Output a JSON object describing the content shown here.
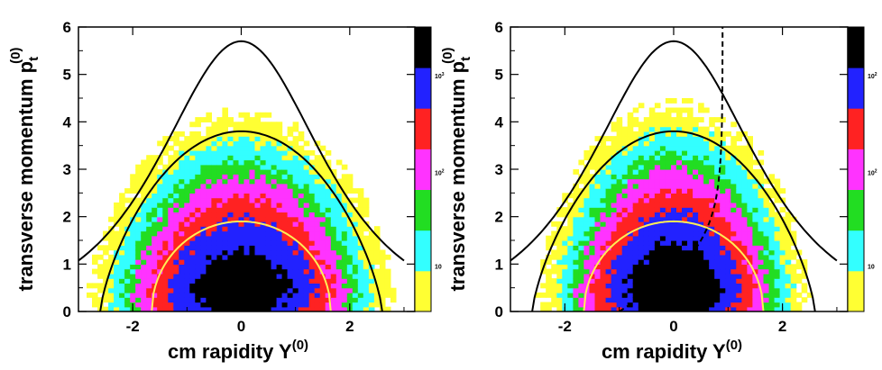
{
  "chart_data": [
    {
      "type": "heatmap",
      "xlabel": "cm rapidity Y",
      "xlabel_sup": "(0)",
      "ylabel": "transverse momentum p",
      "ylabel_sub": "t",
      "ylabel_sup": "(0)",
      "xlim": [
        -3.0,
        3.2
      ],
      "ylim": [
        0,
        6
      ],
      "xticks": [
        "-2",
        "0",
        "2"
      ],
      "yticks": [
        "0",
        "1",
        "2",
        "3",
        "4",
        "5",
        "6"
      ],
      "colorbar_labels": [
        "10",
        "10",
        "10"
      ],
      "colorbar_exponents": [
        "",
        "2",
        "3"
      ],
      "colors": [
        "#ffff33",
        "#33ffff",
        "#22dd22",
        "#ff33ff",
        "#ff2222",
        "#2222ff",
        "#000000"
      ],
      "ellipse": {
        "a": 2.8,
        "b": 4.8,
        "y0": 0.7
      },
      "dip": 0.3,
      "boundary_curves": [
        {
          "ymax": 5.7
        },
        {
          "ymax": 3.8
        }
      ],
      "yellow_curve": {
        "ymax": 1.9
      },
      "dashed_curve": false
    },
    {
      "type": "heatmap",
      "xlabel": "cm rapidity Y",
      "xlabel_sup": "(0)",
      "ylabel": "transverse momentum p",
      "ylabel_sub": "t",
      "ylabel_sup": "(0)",
      "xlim": [
        -3.0,
        3.2
      ],
      "ylim": [
        0,
        6
      ],
      "xticks": [
        "-2",
        "0",
        "2"
      ],
      "yticks": [
        "0",
        "1",
        "2",
        "3",
        "4",
        "5",
        "6"
      ],
      "colorbar_labels": [
        "10",
        "10",
        "10"
      ],
      "colorbar_exponents": [
        "",
        "2",
        "2"
      ],
      "colors": [
        "#ffff33",
        "#33ffff",
        "#22dd22",
        "#ff33ff",
        "#ff2222",
        "#2222ff",
        "#000000"
      ],
      "ellipse": {
        "a": 2.45,
        "b": 4.9,
        "y0": 0.6
      },
      "dip": 0.2,
      "boundary_curves": [
        {
          "ymax": 5.7
        },
        {
          "ymax": 3.8
        }
      ],
      "yellow_curve": {
        "ymax": 1.9
      },
      "dashed_curve": true
    }
  ]
}
